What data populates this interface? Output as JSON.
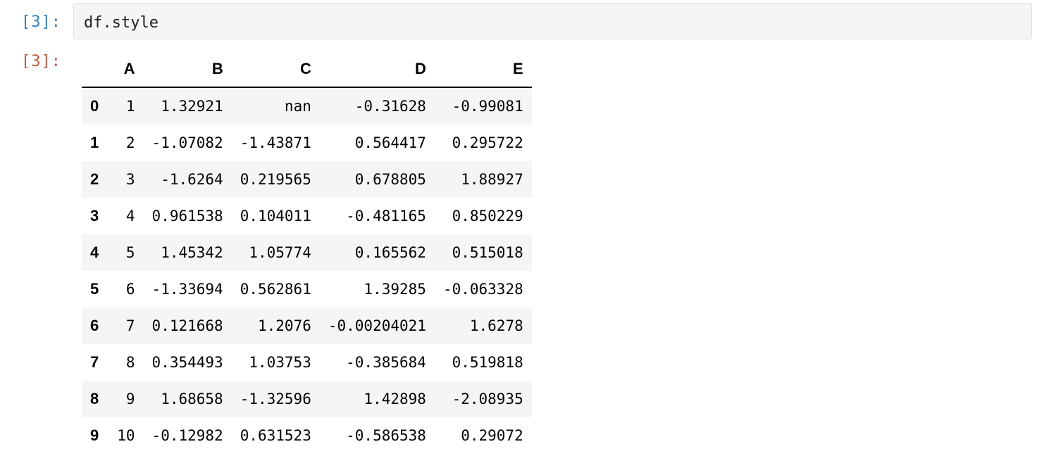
{
  "notebook": {
    "input_prompt": "[3]:",
    "output_prompt": "[3]:",
    "code": "df.style"
  },
  "table": {
    "columns": [
      "A",
      "B",
      "C",
      "D",
      "E"
    ],
    "index": [
      "0",
      "1",
      "2",
      "3",
      "4",
      "5",
      "6",
      "7",
      "8",
      "9"
    ],
    "rows": [
      [
        "1",
        "1.32921",
        "nan",
        "-0.31628",
        "-0.99081"
      ],
      [
        "2",
        "-1.07082",
        "-1.43871",
        "0.564417",
        "0.295722"
      ],
      [
        "3",
        "-1.6264",
        "0.219565",
        "0.678805",
        "1.88927"
      ],
      [
        "4",
        "0.961538",
        "0.104011",
        "-0.481165",
        "0.850229"
      ],
      [
        "5",
        "1.45342",
        "1.05774",
        "0.165562",
        "0.515018"
      ],
      [
        "6",
        "-1.33694",
        "0.562861",
        "1.39285",
        "-0.063328"
      ],
      [
        "7",
        "0.121668",
        "1.2076",
        "-0.00204021",
        "1.6278"
      ],
      [
        "8",
        "0.354493",
        "1.03753",
        "-0.385684",
        "0.519818"
      ],
      [
        "9",
        "1.68658",
        "-1.32596",
        "1.42898",
        "-2.08935"
      ],
      [
        "10",
        "-0.12982",
        "0.631523",
        "-0.586538",
        "0.29072"
      ]
    ]
  }
}
